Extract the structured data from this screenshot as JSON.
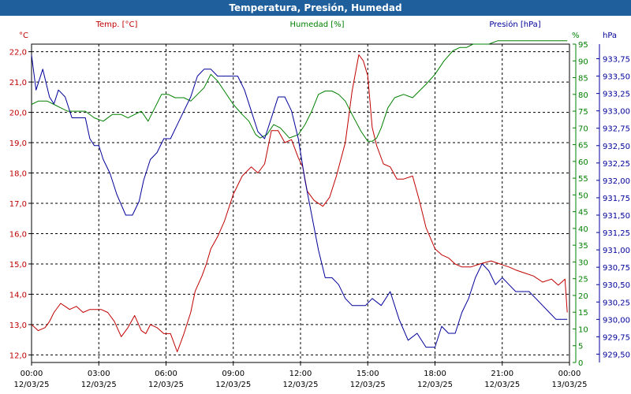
{
  "window": {
    "title": "Temperatura, Presión, Humedad"
  },
  "chart_data": {
    "type": "line",
    "title": "Temperatura, Presión, Humedad",
    "grid": true,
    "legend": {
      "placement": "top",
      "entries": [
        "Temp. [°C]",
        "Humedad [%]",
        "Presión [hPa]"
      ]
    },
    "colors": {
      "temperature": "#c00000",
      "humidity": "#008000",
      "pressure": "#000099"
    },
    "x_ticks": [
      [
        "00:00",
        "12/03/25"
      ],
      [
        "03:00",
        "12/03/25"
      ],
      [
        "06:00",
        "12/03/25"
      ],
      [
        "09:00",
        "12/03/25"
      ],
      [
        "12:00",
        "12/03/25"
      ],
      [
        "15:00",
        "12/03/25"
      ],
      [
        "18:00",
        "12/03/25"
      ],
      [
        "21:00",
        "12/03/25"
      ],
      [
        "00:00",
        "13/03/25"
      ]
    ],
    "xlim_hours": [
      0,
      24
    ],
    "axes": {
      "temperature": {
        "unit": "°C",
        "label": "Temp. [°C]",
        "ylim": [
          11.75,
          22.25
        ],
        "ticks": [
          "12,0",
          "13,0",
          "14,0",
          "15,0",
          "16,0",
          "17,0",
          "18,0",
          "19,0",
          "20,0",
          "21,0",
          "22,0"
        ]
      },
      "humidity": {
        "unit": "%",
        "label": "Humedad [%]",
        "ylim": [
          0,
          95
        ],
        "ticks": [
          "0",
          "5",
          "10",
          "15",
          "20",
          "25",
          "30",
          "35",
          "40",
          "45",
          "50",
          "55",
          "60",
          "65",
          "70",
          "75",
          "80",
          "85",
          "90",
          "95"
        ]
      },
      "pressure": {
        "unit": "hPa",
        "label": "Presión [hPa]",
        "ylim": [
          929.38,
          933.96
        ],
        "ticks": [
          "929,50",
          "929,75",
          "930,00",
          "930,25",
          "930,50",
          "930,75",
          "931,00",
          "931,25",
          "931,50",
          "931,75",
          "932,00",
          "932,25",
          "932,50",
          "932,75",
          "933,00",
          "933,25",
          "933,50",
          "933,75"
        ]
      }
    },
    "series": [
      {
        "name": "Temp. [°C]",
        "axis": "temperature",
        "x_hours": [
          0.0,
          0.3,
          0.6,
          0.8,
          1.0,
          1.3,
          1.5,
          1.7,
          2.0,
          2.3,
          2.6,
          2.8,
          3.1,
          3.4,
          3.7,
          4.0,
          4.3,
          4.6,
          4.9,
          5.1,
          5.3,
          5.6,
          5.9,
          6.2,
          6.5,
          6.8,
          7.1,
          7.3,
          7.6,
          7.8,
          8.0,
          8.3,
          8.6,
          9.0,
          9.4,
          9.8,
          10.1,
          10.4,
          10.7,
          11.0,
          11.3,
          11.6,
          11.9,
          12.1,
          12.3,
          12.6,
          13.0,
          13.3,
          13.6,
          14.0,
          14.3,
          14.6,
          14.8,
          15.0,
          15.2,
          15.4,
          15.7,
          16.0,
          16.3,
          16.6,
          17.0,
          17.3,
          17.6,
          18.0,
          18.3,
          18.6,
          18.9,
          19.2,
          19.6,
          20.0,
          20.5,
          20.9,
          21.3,
          21.6,
          22.0,
          22.4,
          22.8,
          23.2,
          23.5,
          23.8,
          23.9
        ],
        "values": [
          13.0,
          12.8,
          12.9,
          13.1,
          13.4,
          13.7,
          13.6,
          13.5,
          13.6,
          13.4,
          13.5,
          13.5,
          13.5,
          13.4,
          13.1,
          12.6,
          12.9,
          13.3,
          12.8,
          12.7,
          13.0,
          12.9,
          12.7,
          12.7,
          12.1,
          12.7,
          13.4,
          14.1,
          14.6,
          15.0,
          15.5,
          15.9,
          16.4,
          17.3,
          17.9,
          18.2,
          18.0,
          18.3,
          19.4,
          19.4,
          19.0,
          19.1,
          18.5,
          18.2,
          17.4,
          17.1,
          16.9,
          17.2,
          17.9,
          19.0,
          20.7,
          21.9,
          21.7,
          21.2,
          19.5,
          18.9,
          18.3,
          18.2,
          17.8,
          17.8,
          17.9,
          17.1,
          16.2,
          15.5,
          15.3,
          15.2,
          15.0,
          14.9,
          14.9,
          15.0,
          15.1,
          15.0,
          14.9,
          14.8,
          14.7,
          14.6,
          14.4,
          14.5,
          14.3,
          14.5,
          13.4
        ]
      },
      {
        "name": "Humedad [%]",
        "axis": "humidity",
        "x_hours": [
          0.0,
          0.3,
          0.7,
          1.0,
          1.3,
          1.6,
          2.0,
          2.4,
          2.8,
          3.2,
          3.6,
          4.0,
          4.3,
          4.6,
          4.9,
          5.2,
          5.5,
          5.8,
          6.1,
          6.4,
          6.8,
          7.1,
          7.4,
          7.7,
          8.0,
          8.3,
          8.6,
          9.0,
          9.4,
          9.7,
          10.0,
          10.2,
          10.5,
          10.8,
          11.1,
          11.5,
          11.9,
          12.2,
          12.5,
          12.8,
          13.1,
          13.4,
          13.7,
          14.0,
          14.3,
          14.7,
          15.0,
          15.2,
          15.4,
          15.6,
          15.9,
          16.2,
          16.6,
          17.0,
          17.3,
          17.6,
          18.0,
          18.4,
          18.8,
          19.1,
          19.4,
          19.7,
          20.0,
          20.4,
          20.8,
          21.2,
          21.6,
          22.0,
          22.5,
          23.0,
          23.5,
          23.9
        ],
        "values": [
          77,
          78,
          78,
          77,
          76,
          75,
          75,
          75,
          73,
          72,
          74,
          74,
          73,
          74,
          75,
          72,
          76,
          80,
          80,
          79,
          79,
          78,
          80,
          82,
          86,
          84,
          81,
          77,
          74,
          72,
          68,
          67,
          68,
          71,
          70,
          67,
          68,
          71,
          75,
          80,
          81,
          81,
          80,
          78,
          74,
          69,
          66,
          66,
          67,
          70,
          76,
          79,
          80,
          79,
          81,
          83,
          86,
          90,
          93,
          94,
          94,
          95,
          95,
          95,
          96,
          96,
          96,
          96,
          96,
          96,
          96,
          96
        ]
      },
      {
        "name": "Presión [hPa]",
        "axis": "pressure",
        "x_hours": [
          0.0,
          0.2,
          0.5,
          0.8,
          1.0,
          1.2,
          1.5,
          1.8,
          2.0,
          2.4,
          2.6,
          2.8,
          3.0,
          3.2,
          3.5,
          3.8,
          4.2,
          4.5,
          4.8,
          5.0,
          5.3,
          5.6,
          5.9,
          6.2,
          6.5,
          6.8,
          7.1,
          7.4,
          7.7,
          8.0,
          8.3,
          8.6,
          8.9,
          9.2,
          9.5,
          9.8,
          10.1,
          10.4,
          10.7,
          11.0,
          11.3,
          11.6,
          11.9,
          12.2,
          12.5,
          12.8,
          13.1,
          13.4,
          13.7,
          14.0,
          14.3,
          14.6,
          14.9,
          15.2,
          15.6,
          16.0,
          16.4,
          16.8,
          17.2,
          17.6,
          18.0,
          18.3,
          18.6,
          18.9,
          19.2,
          19.5,
          19.8,
          20.1,
          20.4,
          20.7,
          21.0,
          21.3,
          21.6,
          21.9,
          22.2,
          22.5,
          22.8,
          23.1,
          23.4,
          23.7,
          23.9
        ],
        "values": [
          933.8,
          933.3,
          933.6,
          933.2,
          933.1,
          933.3,
          933.2,
          932.9,
          932.9,
          932.9,
          932.6,
          932.5,
          932.5,
          932.3,
          932.1,
          931.8,
          931.5,
          931.5,
          931.7,
          932.0,
          932.3,
          932.4,
          932.6,
          932.6,
          932.8,
          933.0,
          933.2,
          933.5,
          933.6,
          933.6,
          933.5,
          933.5,
          933.5,
          933.5,
          933.3,
          933.0,
          932.7,
          932.6,
          932.9,
          933.2,
          933.2,
          933.0,
          932.6,
          932.0,
          931.5,
          931.0,
          930.6,
          930.6,
          930.5,
          930.3,
          930.2,
          930.2,
          930.2,
          930.3,
          930.2,
          930.4,
          930.0,
          929.7,
          929.8,
          929.6,
          929.6,
          929.9,
          929.8,
          929.8,
          930.1,
          930.3,
          930.6,
          930.8,
          930.7,
          930.5,
          930.6,
          930.5,
          930.4,
          930.4,
          930.4,
          930.3,
          930.2,
          930.1,
          930.0,
          930.0,
          930.0
        ]
      }
    ]
  }
}
